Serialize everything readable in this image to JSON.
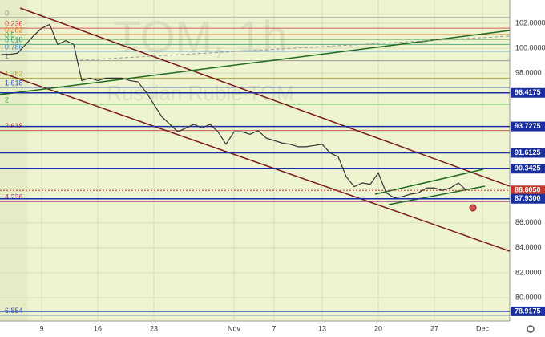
{
  "chart_data": {
    "type": "line",
    "watermark": "TOM, 1h",
    "subtitle": "Russian Ruble TOM",
    "categories": [
      null,
      null,
      null,
      null,
      null,
      "9",
      null,
      null,
      null,
      null,
      null,
      null,
      "16",
      null,
      null,
      null,
      null,
      null,
      null,
      "23",
      null,
      null,
      null,
      null,
      null,
      null,
      null,
      null,
      null,
      "Nov",
      null,
      null,
      null,
      null,
      "7",
      null,
      null,
      null,
      null,
      null,
      "13",
      null,
      null,
      null,
      null,
      null,
      null,
      "20",
      null,
      null,
      null,
      null,
      null,
      null,
      "27",
      null,
      null,
      null,
      null,
      null,
      "Dec",
      null,
      null,
      null
    ],
    "series": [
      {
        "color": "#333333",
        "values": [
          99.5,
          99.5,
          99.6,
          100.3,
          101.0,
          101.6,
          101.9,
          100.3,
          100.6,
          100.3,
          97.4,
          97.6,
          97.4,
          97.6,
          97.6,
          97.6,
          97.4,
          97.3,
          96.5,
          95.5,
          94.5,
          93.9,
          93.3,
          93.6,
          93.9,
          93.6,
          93.9,
          93.3,
          92.3,
          93.3,
          93.3,
          93.1,
          93.4,
          92.8,
          92.6,
          92.4,
          92.3,
          92.1,
          92.1,
          92.2,
          92.3,
          91.6,
          91.3,
          89.7,
          88.9,
          89.2,
          89.1,
          90.0,
          88.4,
          88.0,
          88.1,
          88.3,
          88.4,
          88.8,
          88.8,
          88.6,
          88.8,
          89.2,
          88.6,
          null,
          null,
          null,
          null,
          null
        ]
      }
    ],
    "ylim": [
      78.14,
      103.86
    ],
    "yticks": [
      {
        "value": 102,
        "label": "102.0000"
      },
      {
        "value": 100,
        "label": "100.0000"
      },
      {
        "value": 98,
        "label": "98.0000"
      },
      {
        "value": 86,
        "label": "86.0000"
      },
      {
        "value": 84,
        "label": "84.0000"
      },
      {
        "value": 82,
        "label": "82.0000"
      },
      {
        "value": 80,
        "label": "80.0000"
      }
    ],
    "price_levels": [
      {
        "value": 96.4175,
        "color": "#1a2fa0"
      },
      {
        "value": 93.7275,
        "color": "#1a2fa0"
      },
      {
        "value": 91.6125,
        "color": "#1a2fa0"
      },
      {
        "value": 90.3425,
        "color": "#1a2fa0"
      },
      {
        "value": 88.605,
        "label": "88.6050",
        "color": "#c0392b"
      },
      {
        "value": 87.93,
        "label": "87.9300",
        "color": "#1a2fa0"
      },
      {
        "value": 78.9175,
        "color": "#1a2fa0"
      }
    ],
    "fib_levels": [
      {
        "level": 0,
        "price": 102.45,
        "color": "#888888"
      },
      {
        "level": 0.236,
        "price": 101.6,
        "color": "#d04040"
      },
      {
        "level": 0.382,
        "price": 101.1,
        "color": "#e08020"
      },
      {
        "level": 0.5,
        "price": 100.7,
        "color": "#40a040"
      },
      {
        "level": 0.618,
        "price": 100.3,
        "color": "#30a070"
      },
      {
        "level": 0.786,
        "price": 99.75,
        "color": "#3080c0"
      },
      {
        "level": 1,
        "price": 99.0,
        "color": "#888888"
      },
      {
        "level": 1.382,
        "price": 97.6,
        "color": "#a0a020"
      },
      {
        "level": 1.618,
        "price": 96.85,
        "color": "#3050c0"
      },
      {
        "level": 2,
        "price": 95.5,
        "color": "#40b040"
      },
      {
        "level": 2.618,
        "price": 93.4,
        "color": "#c03030"
      },
      {
        "level": 4.236,
        "price": 87.7,
        "color": "#b03080"
      },
      {
        "level": 6.854,
        "price": 78.6,
        "color": "#3050c0"
      }
    ],
    "grid": true
  }
}
